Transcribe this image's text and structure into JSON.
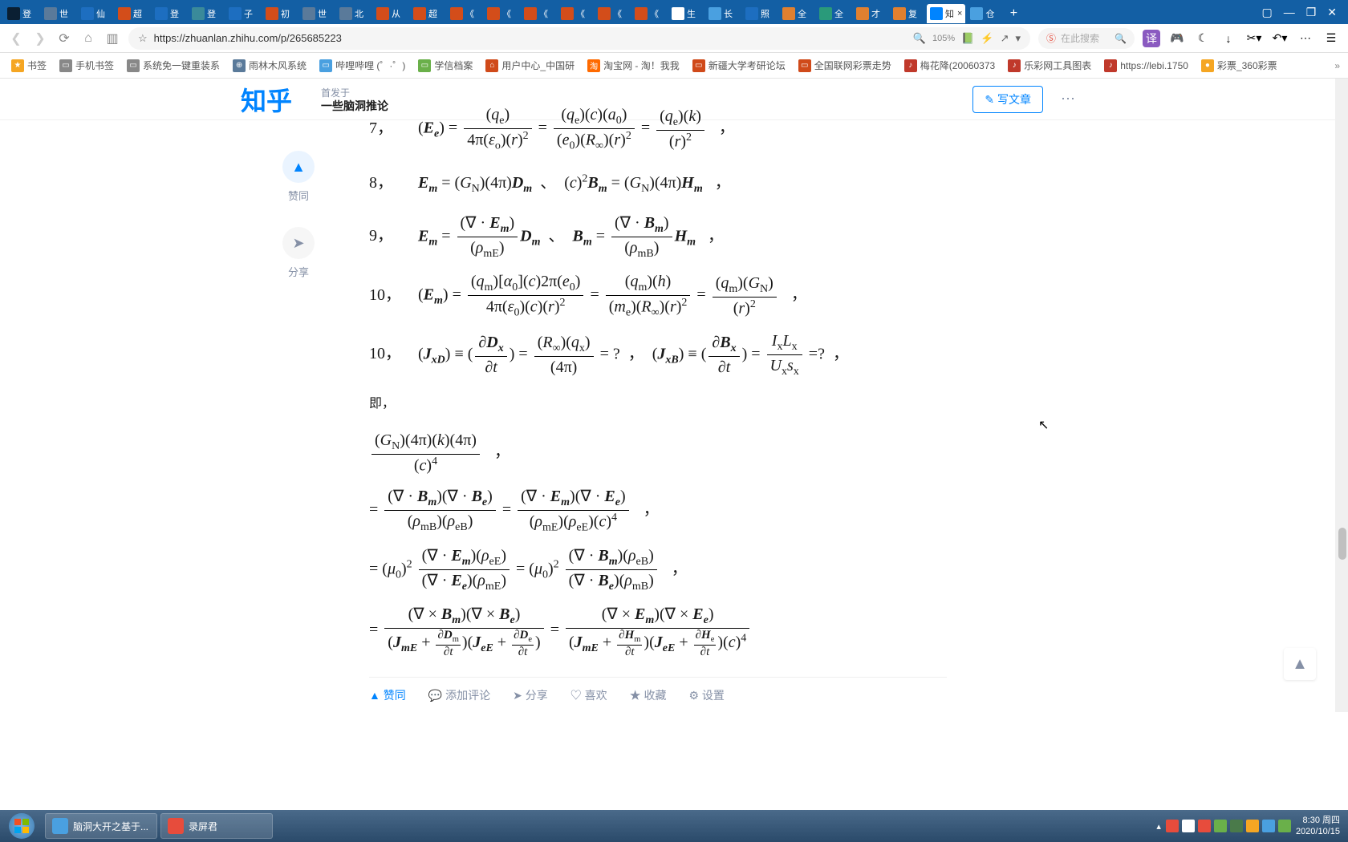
{
  "browser": {
    "tabs": [
      {
        "icon_color": "#0a1f33",
        "label": "登"
      },
      {
        "icon_color": "#5a7a9a",
        "label": "世"
      },
      {
        "icon_color": "#1d6ec0",
        "label": "仙"
      },
      {
        "icon_color": "#d34d1a",
        "label": "超"
      },
      {
        "icon_color": "#1d6ec0",
        "label": "登"
      },
      {
        "icon_color": "#3a8a9a",
        "label": "登"
      },
      {
        "icon_color": "#1d6ec0",
        "label": "子"
      },
      {
        "icon_color": "#d34d1a",
        "label": "初"
      },
      {
        "icon_color": "#5a7a9a",
        "label": "世"
      },
      {
        "icon_color": "#5a7a9a",
        "label": "北"
      },
      {
        "icon_color": "#d34d1a",
        "label": "从"
      },
      {
        "icon_color": "#d34d1a",
        "label": "超"
      },
      {
        "icon_color": "#d34d1a",
        "label": "《"
      },
      {
        "icon_color": "#d34d1a",
        "label": "《"
      },
      {
        "icon_color": "#d34d1a",
        "label": "《"
      },
      {
        "icon_color": "#d34d1a",
        "label": "《"
      },
      {
        "icon_color": "#d34d1a",
        "label": "《"
      },
      {
        "icon_color": "#d34d1a",
        "label": "《"
      },
      {
        "icon_color": "#ffffff",
        "label": "生"
      },
      {
        "icon_color": "#4aa0e0",
        "label": "长"
      },
      {
        "icon_color": "#1d6ec0",
        "label": "照"
      },
      {
        "icon_color": "#e08030",
        "label": "全"
      },
      {
        "icon_color": "#2a9a7a",
        "label": "全"
      },
      {
        "icon_color": "#e08030",
        "label": "才"
      },
      {
        "icon_color": "#e08030",
        "label": "复"
      },
      {
        "icon_color": "#0084ff",
        "label": "知",
        "active": true,
        "close": "×"
      },
      {
        "icon_color": "#4aa0e0",
        "label": "仓"
      }
    ],
    "new_tab": "+",
    "window_controls": {
      "ext": "▢",
      "min": "—",
      "max": "❐",
      "close": "✕"
    }
  },
  "urlbar": {
    "back": "❮",
    "forward": "❯",
    "reload": "⟳",
    "home": "⌂",
    "sidebar": "▥",
    "star": "☆",
    "url": "https://zhuanlan.zhihu.com/p/265685223",
    "zoom_icon": "🔍",
    "zoom": "105%",
    "icons": {
      "book": "📗",
      "flash": "⚡",
      "share": "↗",
      "down": "▾"
    },
    "search_icon": "Ⓢ",
    "search_placeholder": "在此搜索",
    "search_btn": "🔍",
    "right": {
      "translate": "译",
      "game": "🎮",
      "dark": "☾",
      "download": "↓",
      "scissors": "✂▾",
      "undo": "↶▾",
      "more": "⋯",
      "menu": "☰"
    }
  },
  "bookmarks": [
    {
      "icon": "★",
      "color": "#f5a623",
      "label": "书签"
    },
    {
      "icon": "▭",
      "color": "#888",
      "label": "手机书签"
    },
    {
      "icon": "▭",
      "color": "#888",
      "label": "系统免一键重装系"
    },
    {
      "icon": "⊕",
      "color": "#5a7a9a",
      "label": "雨林木风系统"
    },
    {
      "icon": "▭",
      "color": "#4aa0e0",
      "label": "哔哩哔哩 (゜·゜)"
    },
    {
      "icon": "▭",
      "color": "#6ab04a",
      "label": "学信档案"
    },
    {
      "icon": "⌂",
      "color": "#d04a1a",
      "label": "用户中心_中国研"
    },
    {
      "icon": "淘",
      "color": "#ff6a00",
      "label": "淘宝网 - 淘！我我"
    },
    {
      "icon": "▭",
      "color": "#d04a1a",
      "label": "新疆大学考研论坛"
    },
    {
      "icon": "▭",
      "color": "#d04a1a",
      "label": "全国联网彩票走势"
    },
    {
      "icon": "♪",
      "color": "#c0392b",
      "label": "梅花降(20060373"
    },
    {
      "icon": "♪",
      "color": "#c0392b",
      "label": "乐彩网工具图表"
    },
    {
      "icon": "♪",
      "color": "#c0392b",
      "label": "https://lebi.1750"
    },
    {
      "icon": "●",
      "color": "#f5a623",
      "label": "彩票_360彩票"
    }
  ],
  "bookmark_more": "»",
  "zhihu": {
    "logo": "知乎",
    "origin_label": "首发于",
    "subtitle": "一些脑洞推论",
    "write_btn": "✎ 写文章",
    "more": "⋯"
  },
  "left_actions": {
    "vote": {
      "icon": "▲",
      "label": "赞同"
    },
    "share": {
      "icon": "➤",
      "label": "分享"
    }
  },
  "content": {
    "eq7_num": "7，",
    "eq8_num": "8，",
    "eq9_num": "9，",
    "eq10_num": "10，",
    "eq10b_num": "10，",
    "therefore": "即，",
    "comma": "，",
    "dot": "、"
  },
  "bottom_actions": {
    "vote": "▲ 赞同",
    "comment": "💬 添加评论",
    "share": "➤ 分享",
    "like": "♡ 喜欢",
    "fav": "★ 收藏",
    "settings": "⚙ 设置"
  },
  "back_top": "▲",
  "taskbar": {
    "tasks": [
      {
        "icon_color": "#4aa0e0",
        "label": "脑洞大开之基于..."
      },
      {
        "icon_color": "#e74c3c",
        "label": "录屏君"
      }
    ],
    "tray_icons": [
      "#e74c3c",
      "#fff",
      "#e74c3c",
      "#6ab04a",
      "#4a7a4a",
      "#f5a623",
      "#4aa0e0",
      "#6ab04a"
    ],
    "time": "8:30 周四",
    "date": "2020/10/15"
  }
}
